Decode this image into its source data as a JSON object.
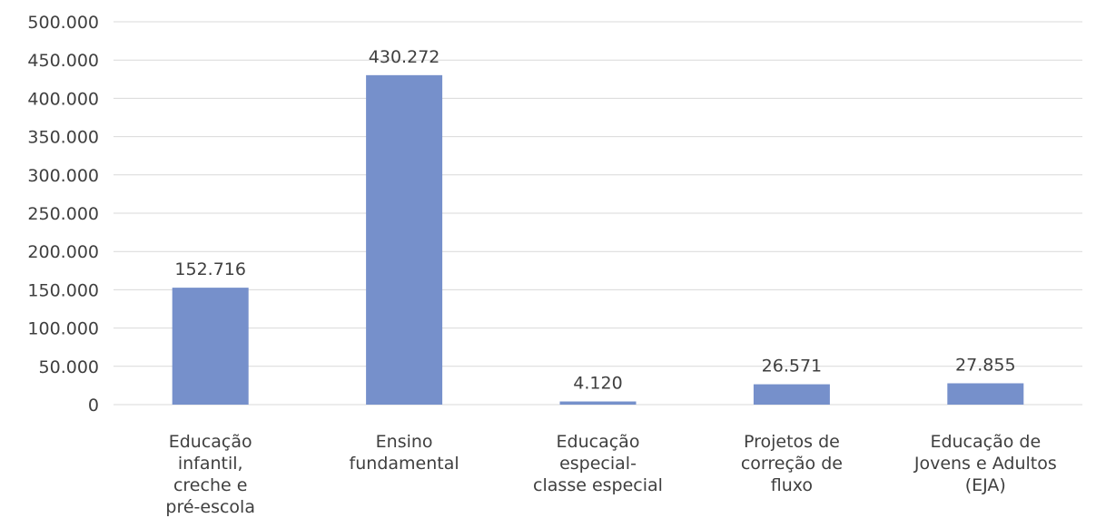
{
  "chart_data": {
    "type": "bar",
    "categories": [
      [
        "Educação",
        "infantil,",
        "creche e",
        "pré-escola"
      ],
      [
        "Ensino",
        "fundamental"
      ],
      [
        "Educação",
        "especial-",
        "classe especial"
      ],
      [
        "Projetos de",
        "correção de",
        "fluxo"
      ],
      [
        "Educação de",
        "Jovens e Adultos",
        "(EJA)"
      ]
    ],
    "values": [
      152716,
      430272,
      4120,
      26571,
      27855
    ],
    "value_labels": [
      "152.716",
      "430.272",
      "4.120",
      "26.571",
      "27.855"
    ],
    "ylim": [
      0,
      500000
    ],
    "yticks": [
      0,
      50000,
      100000,
      150000,
      200000,
      250000,
      300000,
      350000,
      400000,
      450000,
      500000
    ],
    "ytick_labels": [
      "0",
      "50.000",
      "100.000",
      "150.000",
      "200.000",
      "250.000",
      "300.000",
      "350.000",
      "400.000",
      "450.000",
      "500.000"
    ],
    "grid": true,
    "bar_color": "#7690CB",
    "title": "",
    "xlabel": "",
    "ylabel": ""
  }
}
